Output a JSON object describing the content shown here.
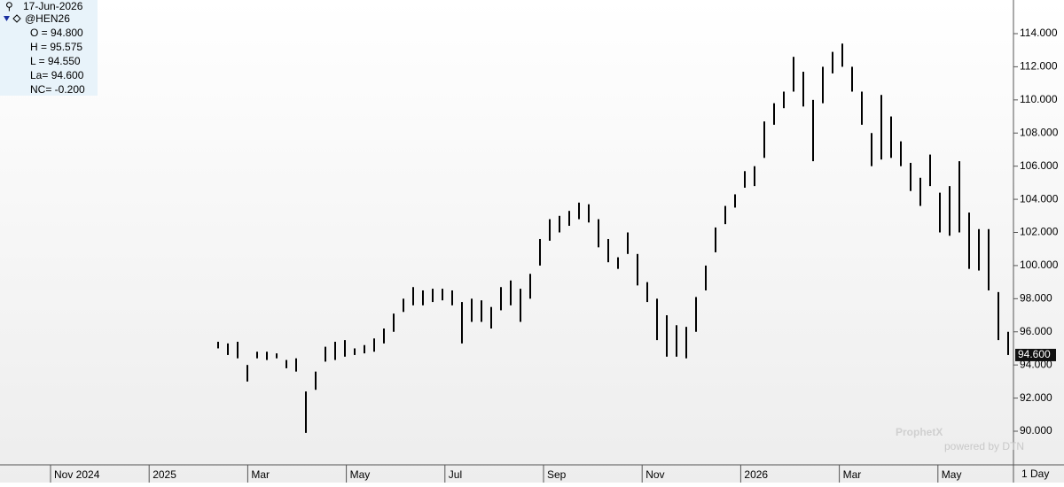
{
  "chart_data": {
    "type": "ohlc",
    "date": "17-Jun-2026",
    "symbol": "@HEN26",
    "quote_lines": [
      "O = 94.800",
      "H = 95.575",
      "L = 94.550",
      "La= 94.600",
      "NC= -0.200"
    ],
    "last_value": 94.6,
    "last_value_label": "94.600",
    "period": "1 Day",
    "watermark": "ProphetX",
    "watermark_sub": "powered by DTN",
    "x_labels": [
      "Nov 2024",
      "2025",
      "Mar",
      "May",
      "Jul",
      "Sep",
      "Nov",
      "2026",
      "Mar",
      "May"
    ],
    "ylim": [
      88,
      116
    ],
    "yticks": [
      {
        "value": 90,
        "label": "90.000"
      },
      {
        "value": 92,
        "label": "92.000"
      },
      {
        "value": 94,
        "label": "94.000"
      },
      {
        "value": 96,
        "label": "96.000"
      },
      {
        "value": 98,
        "label": "98.000"
      },
      {
        "value": 100,
        "label": "100.000"
      },
      {
        "value": 102,
        "label": "102.000"
      },
      {
        "value": 104,
        "label": "104.000"
      },
      {
        "value": 106,
        "label": "106.000"
      },
      {
        "value": 108,
        "label": "108.000"
      },
      {
        "value": 110,
        "label": "110.000"
      },
      {
        "value": 112,
        "label": "112.000"
      },
      {
        "value": 114,
        "label": "114.000"
      }
    ],
    "color": "#000000",
    "high": [
      95.4,
      95.3,
      95.4,
      94.0,
      94.8,
      94.8,
      94.7,
      94.3,
      94.4,
      92.4,
      93.6,
      95.1,
      95.4,
      95.5,
      95.0,
      95.2,
      95.6,
      96.2,
      97.1,
      98.0,
      98.7,
      98.5,
      98.6,
      98.6,
      98.5,
      97.8,
      98.0,
      97.9,
      97.5,
      98.7,
      99.1,
      98.6,
      99.5,
      101.6,
      102.8,
      103.0,
      103.3,
      103.8,
      103.7,
      102.8,
      101.6,
      100.5,
      102.0,
      100.7,
      99.0,
      98.0,
      97.0,
      96.4,
      96.3,
      98.1,
      100.0,
      102.3,
      103.6,
      104.3,
      105.7,
      106.0,
      108.7,
      109.8,
      110.5,
      112.6,
      111.7,
      110.0,
      112.0,
      112.9,
      113.4,
      112.0,
      110.5,
      108.0,
      110.3,
      109.0,
      107.5,
      106.2,
      105.3,
      106.7,
      104.4,
      104.8,
      106.3,
      103.2,
      102.2,
      102.2,
      98.4,
      96.0
    ],
    "low": [
      95.0,
      94.6,
      94.4,
      93.0,
      94.4,
      94.3,
      94.4,
      93.8,
      93.6,
      89.9,
      92.5,
      94.2,
      94.3,
      94.5,
      94.6,
      94.7,
      94.8,
      95.3,
      96.0,
      97.2,
      97.6,
      97.6,
      97.8,
      97.9,
      97.6,
      95.3,
      96.6,
      96.6,
      96.2,
      97.3,
      97.6,
      96.6,
      98.0,
      100.0,
      101.5,
      102.0,
      102.4,
      102.8,
      102.6,
      101.1,
      100.2,
      99.8,
      100.7,
      98.8,
      97.8,
      95.5,
      94.5,
      94.5,
      94.4,
      96.0,
      98.5,
      100.8,
      102.5,
      103.5,
      104.7,
      104.8,
      106.5,
      108.5,
      109.5,
      110.5,
      109.6,
      106.3,
      109.8,
      111.6,
      112.0,
      110.5,
      108.5,
      106.0,
      106.4,
      106.5,
      106.0,
      104.5,
      103.6,
      104.8,
      102.0,
      101.8,
      102.0,
      99.8,
      99.7,
      98.5,
      95.5,
      94.6
    ]
  }
}
